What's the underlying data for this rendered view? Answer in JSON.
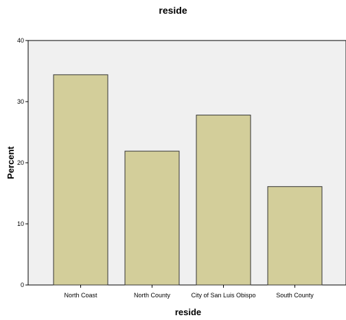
{
  "chart_data": {
    "type": "bar",
    "title": "reside",
    "xlabel": "reside",
    "ylabel": "Percent",
    "categories": [
      "North Coast",
      "North County",
      "City of San Luis Obispo",
      "South County"
    ],
    "values": [
      34.4,
      21.9,
      27.8,
      16.1
    ],
    "ylim": [
      0,
      40
    ],
    "yticks": [
      0,
      10,
      20,
      30,
      40
    ],
    "grid": false,
    "legend": "none",
    "colors": {
      "bar_fill": "#d3ce9a",
      "bar_stroke": "#333333",
      "plot_background": "#f0f0f0"
    }
  }
}
